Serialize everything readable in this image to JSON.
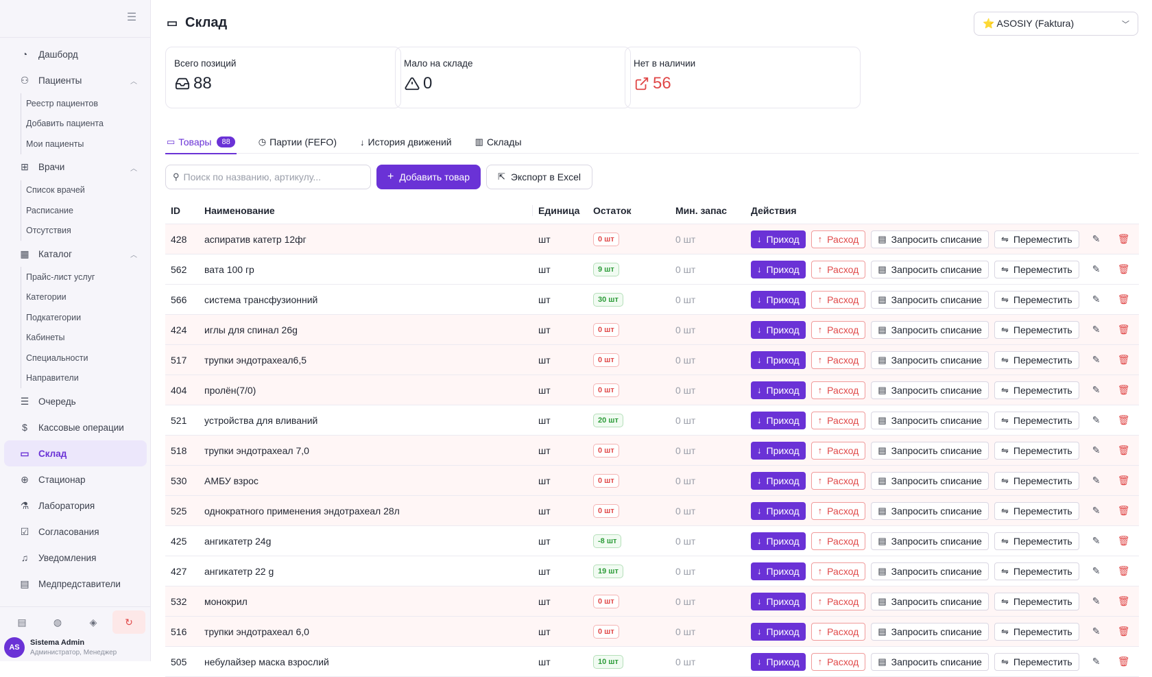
{
  "sidebar": {
    "collapse_icon": "menu-collapse-icon",
    "items": [
      {
        "label": "Дашборд",
        "icon": "dashboard-icon"
      },
      {
        "label": "Пациенты",
        "icon": "users-icon",
        "sub": [
          "Реестр пациентов",
          "Добавить пациента",
          "Мои пациенты"
        ]
      },
      {
        "label": "Врачи",
        "icon": "doctor-bag-icon",
        "sub": [
          "Список врачей",
          "Расписание",
          "Отсутствия"
        ]
      },
      {
        "label": "Каталог",
        "icon": "grid-icon",
        "sub": [
          "Прайс-лист услуг",
          "Категории",
          "Подкатегории",
          "Кабинеты",
          "Специальности",
          "Направители"
        ]
      },
      {
        "label": "Очередь",
        "icon": "list-icon"
      },
      {
        "label": "Кассовые операции",
        "icon": "dollar-icon"
      },
      {
        "label": "Склад",
        "icon": "inbox-icon",
        "active": true
      },
      {
        "label": "Стационар",
        "icon": "hospital-icon"
      },
      {
        "label": "Лаборатория",
        "icon": "flask-icon"
      },
      {
        "label": "Согласования",
        "icon": "file-check-icon"
      },
      {
        "label": "Уведомления",
        "icon": "bell-icon"
      },
      {
        "label": "Медпредставители",
        "icon": "file-user-icon"
      }
    ],
    "quick_actions": [
      "receipt-icon",
      "globe-icon",
      "paint-bucket-icon",
      "refresh-icon"
    ],
    "user": {
      "initials": "AS",
      "name": "Sistema Admin",
      "role": "Администратор, Менеджер"
    }
  },
  "header": {
    "title": "Склад",
    "org_select": "⭐ ASOSIY (Faktura)"
  },
  "stats": [
    {
      "label": "Всего позиций",
      "value": "88",
      "icon": "inbox-icon"
    },
    {
      "label": "Мало на складе",
      "value": "0",
      "icon": "warning-icon"
    },
    {
      "label": "Нет в наличии",
      "value": "56",
      "icon": "external-link-icon",
      "color": "#e04848"
    }
  ],
  "tabs": [
    {
      "label": "Товары",
      "badge": "88",
      "icon": "inbox-icon",
      "active": true
    },
    {
      "label": "Партии (FEFO)",
      "icon": "clock-icon"
    },
    {
      "label": "История движений",
      "icon": "arrow-down-icon"
    },
    {
      "label": "Склады",
      "icon": "warehouse-icon"
    }
  ],
  "toolbar": {
    "search_placeholder": "Поиск по названию, артикулу...",
    "add_label": "Добавить товар",
    "export_label": "Экспорт в Excel"
  },
  "table": {
    "headers": [
      "ID",
      "Наименование",
      "Единица",
      "Остаток",
      "Мин. запас",
      "Действия"
    ],
    "actions": {
      "in": "Приход",
      "out": "Расход",
      "writeoff": "Запросить списание",
      "move": "Переместить"
    },
    "rows": [
      {
        "id": "428",
        "name": "аспиратив катетр 12фг",
        "unit": "шт",
        "stock": "0 шт",
        "min": "0 шт",
        "low": true
      },
      {
        "id": "562",
        "name": "вата 100 гр",
        "unit": "шт",
        "stock": "9 шт",
        "min": "0 шт",
        "low": false
      },
      {
        "id": "566",
        "name": "система трансфузионний",
        "unit": "шт",
        "stock": "30 шт",
        "min": "0 шт",
        "low": false
      },
      {
        "id": "424",
        "name": "иглы для спинал 26g",
        "unit": "шт",
        "stock": "0 шт",
        "min": "0 шт",
        "low": true
      },
      {
        "id": "517",
        "name": "трупки эндотрахеал6,5",
        "unit": "шт",
        "stock": "0 шт",
        "min": "0 шт",
        "low": true
      },
      {
        "id": "404",
        "name": "пролён(7/0)",
        "unit": "шт",
        "stock": "0 шт",
        "min": "0 шт",
        "low": true
      },
      {
        "id": "521",
        "name": "устройства для вливаний",
        "unit": "шт",
        "stock": "20 шт",
        "min": "0 шт",
        "low": false
      },
      {
        "id": "518",
        "name": "трупки эндотрахеал 7,0",
        "unit": "шт",
        "stock": "0 шт",
        "min": "0 шт",
        "low": true
      },
      {
        "id": "530",
        "name": "АМБУ взрос",
        "unit": "шт",
        "stock": "0 шт",
        "min": "0 шт",
        "low": true
      },
      {
        "id": "525",
        "name": "однократного применения эндотрахеал 28л",
        "unit": "шт",
        "stock": "0 шт",
        "min": "0 шт",
        "low": true
      },
      {
        "id": "425",
        "name": "ангикатетр 24g",
        "unit": "шт",
        "stock": "-8 шт",
        "min": "0 шт",
        "low": false
      },
      {
        "id": "427",
        "name": "ангикатетр 22 g",
        "unit": "шт",
        "stock": "19 шт",
        "min": "0 шт",
        "low": false
      },
      {
        "id": "532",
        "name": "монокрил",
        "unit": "шт",
        "stock": "0 шт",
        "min": "0 шт",
        "low": true
      },
      {
        "id": "516",
        "name": "трупки эндотрахеал 6,0",
        "unit": "шт",
        "stock": "0 шт",
        "min": "0 шт",
        "low": true
      },
      {
        "id": "505",
        "name": "небулайзер маска взрослий",
        "unit": "шт",
        "stock": "10 шт",
        "min": "0 шт",
        "low": false
      }
    ]
  }
}
